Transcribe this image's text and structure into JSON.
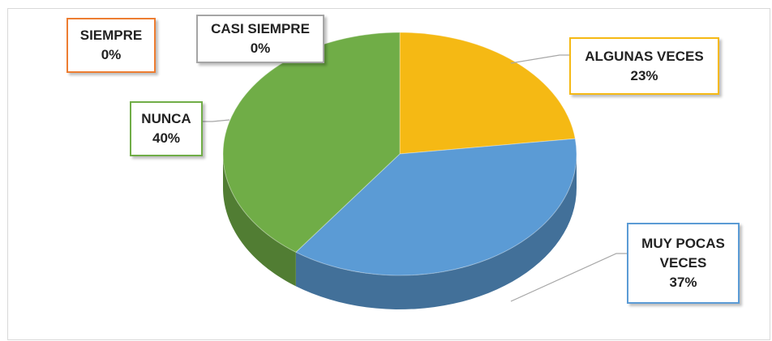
{
  "chart_data": {
    "type": "pie",
    "categories": [
      "SIEMPRE",
      "CASI SIEMPRE",
      "ALGUNAS VECES",
      "MUY POCAS VECES",
      "NUNCA"
    ],
    "values": [
      0,
      0,
      23,
      37,
      40
    ],
    "value_labels": [
      "0%",
      "0%",
      "23%",
      "37%",
      "40%"
    ],
    "colors": [
      "#ed7d31",
      "#a5a5a5",
      "#f5b914",
      "#5b9bd5",
      "#70ad47"
    ]
  }
}
